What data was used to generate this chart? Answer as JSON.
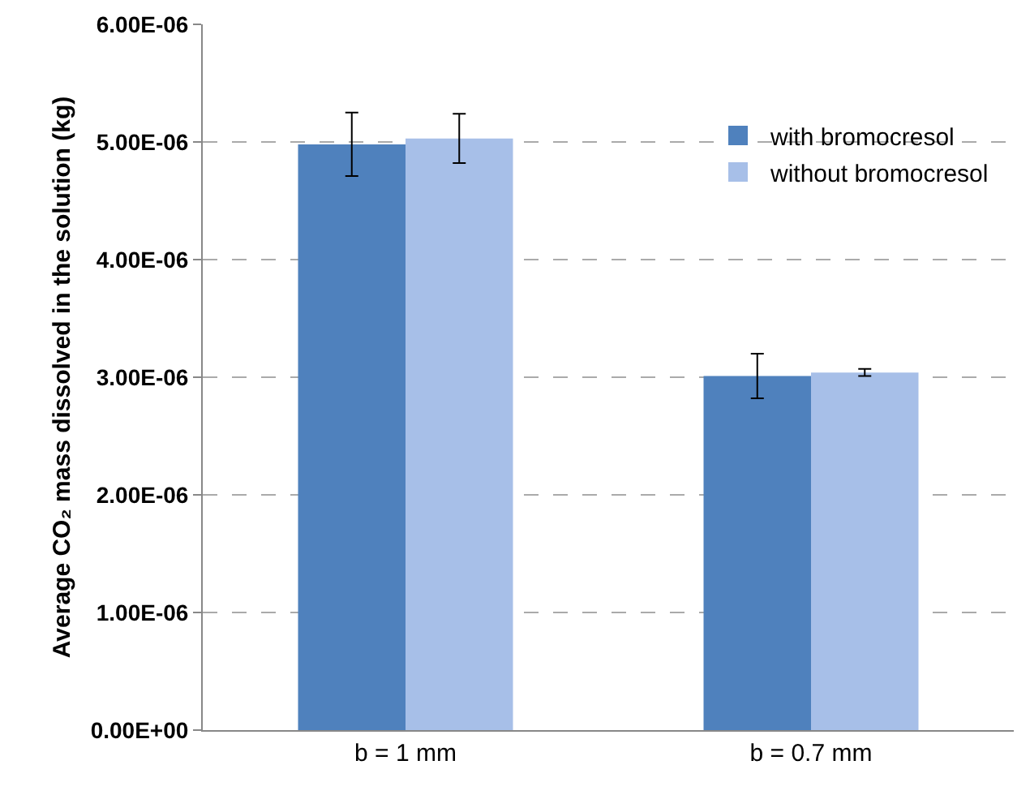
{
  "chart_data": {
    "type": "bar",
    "ylabel": "Average CO₂ mass dissolved in the solution (kg)",
    "categories": [
      "b = 1 mm",
      "b = 0.7 mm"
    ],
    "series": [
      {
        "name": "with bromocresol",
        "color": "#4f81bd",
        "values": [
          4.98e-06,
          3.01e-06
        ],
        "errors": [
          2.7e-07,
          1.9e-07
        ]
      },
      {
        "name": "without bromocresol",
        "color": "#a7bfe8",
        "values": [
          5.03e-06,
          3.04e-06
        ],
        "errors": [
          2.1e-07,
          3e-08
        ]
      }
    ],
    "ylim": [
      0,
      6e-06
    ],
    "yticks": [
      {
        "value": 0,
        "label": "0.00E+00"
      },
      {
        "value": 1e-06,
        "label": "1.00E-06"
      },
      {
        "value": 2e-06,
        "label": "2.00E-06"
      },
      {
        "value": 3e-06,
        "label": "3.00E-06"
      },
      {
        "value": 4e-06,
        "label": "4.00E-06"
      },
      {
        "value": 5e-06,
        "label": "5.00E-06"
      },
      {
        "value": 6e-06,
        "label": "6.00E-06"
      }
    ],
    "grid": "y",
    "legend": "top right"
  }
}
